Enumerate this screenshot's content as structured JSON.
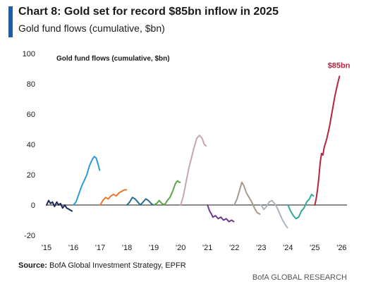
{
  "header": {
    "title": "Chart 8: Gold set for record $85bn inflow in 2025",
    "subtitle": "Gold fund flows (cumulative, $bn)"
  },
  "footer": {
    "source_label": "Source:",
    "source_text": "BofA Global Investment Strategy, EPFR",
    "credit": "BofA GLOBAL RESEARCH"
  },
  "chart_data": {
    "type": "line",
    "title": "Gold fund flows (cumulative, $bn)",
    "xlabel": "",
    "ylabel": "",
    "xlim": [
      2015,
      2026.2
    ],
    "ylim": [
      -20,
      100
    ],
    "yticks": [
      -20,
      0,
      20,
      40,
      60,
      80,
      100
    ],
    "xticks": [
      {
        "value": 2015,
        "label": "'15"
      },
      {
        "value": 2016,
        "label": "'16"
      },
      {
        "value": 2017,
        "label": "'17"
      },
      {
        "value": 2018,
        "label": "'18"
      },
      {
        "value": 2019,
        "label": "'19"
      },
      {
        "value": 2020,
        "label": "'20"
      },
      {
        "value": 2021,
        "label": "'21"
      },
      {
        "value": 2022,
        "label": "'22"
      },
      {
        "value": 2023,
        "label": "'23"
      },
      {
        "value": 2024,
        "label": "'24"
      },
      {
        "value": 2025,
        "label": "'25"
      },
      {
        "value": 2026,
        "label": "'26"
      }
    ],
    "grid": false,
    "legend": "none",
    "annotations": [
      {
        "text": "$85bn",
        "x": 2025.9,
        "y": 85,
        "color": "#b5253e"
      }
    ],
    "series": [
      {
        "year": 2015,
        "color": "#1f2a5c",
        "points": [
          [
            2015.0,
            0
          ],
          [
            2015.08,
            3
          ],
          [
            2015.15,
            1
          ],
          [
            2015.22,
            2
          ],
          [
            2015.3,
            -1
          ],
          [
            2015.38,
            2
          ],
          [
            2015.45,
            0
          ],
          [
            2015.52,
            1
          ],
          [
            2015.6,
            -2
          ],
          [
            2015.68,
            0
          ],
          [
            2015.75,
            -2
          ],
          [
            2015.85,
            -3
          ],
          [
            2015.95,
            -4
          ]
        ]
      },
      {
        "year": 2016,
        "color": "#2e9bd2",
        "points": [
          [
            2016.0,
            0
          ],
          [
            2016.1,
            2
          ],
          [
            2016.2,
            7
          ],
          [
            2016.3,
            12
          ],
          [
            2016.4,
            16
          ],
          [
            2016.5,
            20
          ],
          [
            2016.6,
            26
          ],
          [
            2016.7,
            30
          ],
          [
            2016.78,
            32
          ],
          [
            2016.85,
            31
          ],
          [
            2016.92,
            27
          ],
          [
            2016.98,
            23
          ]
        ]
      },
      {
        "year": 2017,
        "color": "#e8782b",
        "points": [
          [
            2017.0,
            0
          ],
          [
            2017.1,
            3
          ],
          [
            2017.2,
            5
          ],
          [
            2017.3,
            4
          ],
          [
            2017.4,
            6
          ],
          [
            2017.5,
            7
          ],
          [
            2017.6,
            6
          ],
          [
            2017.7,
            8
          ],
          [
            2017.8,
            9
          ],
          [
            2017.9,
            10
          ],
          [
            2017.98,
            10
          ]
        ]
      },
      {
        "year": 2018,
        "color": "#2a6f8f",
        "points": [
          [
            2018.0,
            0
          ],
          [
            2018.1,
            2
          ],
          [
            2018.2,
            5
          ],
          [
            2018.3,
            4
          ],
          [
            2018.4,
            2
          ],
          [
            2018.5,
            0
          ],
          [
            2018.6,
            2
          ],
          [
            2018.7,
            4
          ],
          [
            2018.8,
            3
          ],
          [
            2018.9,
            1
          ],
          [
            2018.98,
            0
          ]
        ]
      },
      {
        "year": 2019,
        "color": "#5aa54a",
        "points": [
          [
            2019.0,
            0
          ],
          [
            2019.1,
            1
          ],
          [
            2019.2,
            3
          ],
          [
            2019.3,
            1
          ],
          [
            2019.4,
            0
          ],
          [
            2019.5,
            3
          ],
          [
            2019.6,
            5
          ],
          [
            2019.7,
            9
          ],
          [
            2019.8,
            14
          ],
          [
            2019.88,
            16
          ],
          [
            2019.95,
            15
          ],
          [
            2019.98,
            15
          ]
        ]
      },
      {
        "year": 2020,
        "color": "#c7a3b5",
        "points": [
          [
            2020.0,
            0
          ],
          [
            2020.1,
            6
          ],
          [
            2020.2,
            15
          ],
          [
            2020.3,
            24
          ],
          [
            2020.4,
            31
          ],
          [
            2020.5,
            38
          ],
          [
            2020.6,
            44
          ],
          [
            2020.7,
            46
          ],
          [
            2020.8,
            44
          ],
          [
            2020.88,
            40
          ],
          [
            2020.95,
            39
          ]
        ]
      },
      {
        "year": 2021,
        "color": "#6b3b8c",
        "points": [
          [
            2021.0,
            0
          ],
          [
            2021.08,
            -4
          ],
          [
            2021.15,
            -6
          ],
          [
            2021.2,
            -8
          ],
          [
            2021.3,
            -7
          ],
          [
            2021.4,
            -9
          ],
          [
            2021.5,
            -8
          ],
          [
            2021.6,
            -10
          ],
          [
            2021.7,
            -9
          ],
          [
            2021.8,
            -11
          ],
          [
            2021.9,
            -10
          ],
          [
            2021.98,
            -11
          ]
        ]
      },
      {
        "year": 2022,
        "color": "#a49a8e",
        "points": [
          [
            2022.0,
            0
          ],
          [
            2022.1,
            4
          ],
          [
            2022.2,
            10
          ],
          [
            2022.28,
            15
          ],
          [
            2022.35,
            13
          ],
          [
            2022.45,
            8
          ],
          [
            2022.55,
            5
          ],
          [
            2022.65,
            2
          ],
          [
            2022.75,
            -2
          ],
          [
            2022.85,
            -5
          ],
          [
            2022.95,
            -6
          ]
        ]
      },
      {
        "year": 2023,
        "color": "#a9b3bd",
        "points": [
          [
            2023.0,
            0
          ],
          [
            2023.1,
            -3
          ],
          [
            2023.2,
            -1
          ],
          [
            2023.3,
            2
          ],
          [
            2023.4,
            3
          ],
          [
            2023.5,
            1
          ],
          [
            2023.6,
            -2
          ],
          [
            2023.7,
            -6
          ],
          [
            2023.8,
            -10
          ],
          [
            2023.9,
            -13
          ],
          [
            2023.98,
            -15
          ]
        ]
      },
      {
        "year": 2024,
        "color": "#2fa89a",
        "points": [
          [
            2024.0,
            0
          ],
          [
            2024.1,
            -4
          ],
          [
            2024.2,
            -7
          ],
          [
            2024.3,
            -9
          ],
          [
            2024.4,
            -8
          ],
          [
            2024.5,
            -4
          ],
          [
            2024.6,
            -2
          ],
          [
            2024.7,
            2
          ],
          [
            2024.8,
            4
          ],
          [
            2024.88,
            7
          ],
          [
            2024.95,
            6
          ]
        ]
      },
      {
        "year": 2025,
        "color": "#b5253e",
        "points": [
          [
            2025.0,
            0
          ],
          [
            2025.05,
            4
          ],
          [
            2025.1,
            10
          ],
          [
            2025.15,
            18
          ],
          [
            2025.2,
            28
          ],
          [
            2025.25,
            34
          ],
          [
            2025.3,
            33
          ],
          [
            2025.35,
            38
          ],
          [
            2025.45,
            44
          ],
          [
            2025.55,
            52
          ],
          [
            2025.65,
            62
          ],
          [
            2025.75,
            72
          ],
          [
            2025.85,
            80
          ],
          [
            2025.92,
            85
          ]
        ]
      }
    ]
  }
}
